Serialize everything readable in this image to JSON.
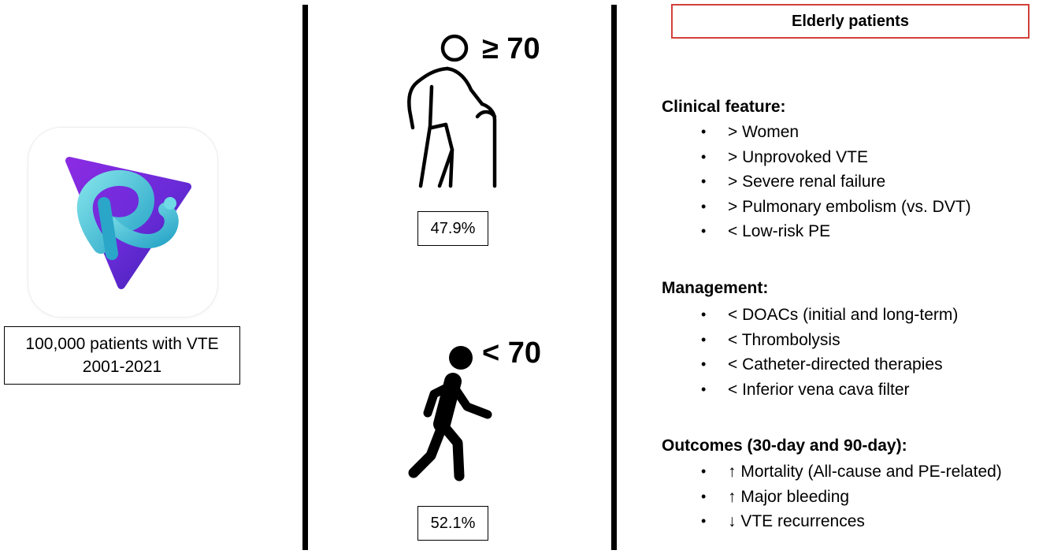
{
  "dataset": {
    "line1": "100,000 patients with VTE",
    "line2": "2001-2021"
  },
  "groups": {
    "elderly": {
      "label": "≥ 70",
      "percent": "47.9%",
      "icon": "elderly-person-with-cane-icon"
    },
    "younger": {
      "label": "< 70",
      "percent": "52.1%",
      "icon": "walking-person-icon"
    }
  },
  "panel": {
    "title": "Elderly patients",
    "sections": [
      {
        "heading": "Clinical feature:",
        "items": [
          "> Women",
          "> Unprovoked VTE",
          "> Severe renal failure",
          "> Pulmonary embolism (vs. DVT)",
          "< Low-risk PE"
        ]
      },
      {
        "heading": "Management:",
        "items": [
          "< DOACs (initial and long-term)",
          "< Thrombolysis",
          "< Catheter-directed therapies",
          "< Inferior vena cava filter"
        ]
      },
      {
        "heading": "Outcomes (30-day and 90-day):",
        "items": [
          "↑ Mortality (All-cause and PE-related)",
          "↑ Major bleeding",
          "↓ VTE recurrences"
        ]
      }
    ]
  },
  "colors": {
    "title_border": "#d2403a",
    "logo_gradient_start": "#7b2ff0",
    "logo_gradient_end": "#3b1fb6",
    "logo_ribbon": "#49c7d6"
  }
}
